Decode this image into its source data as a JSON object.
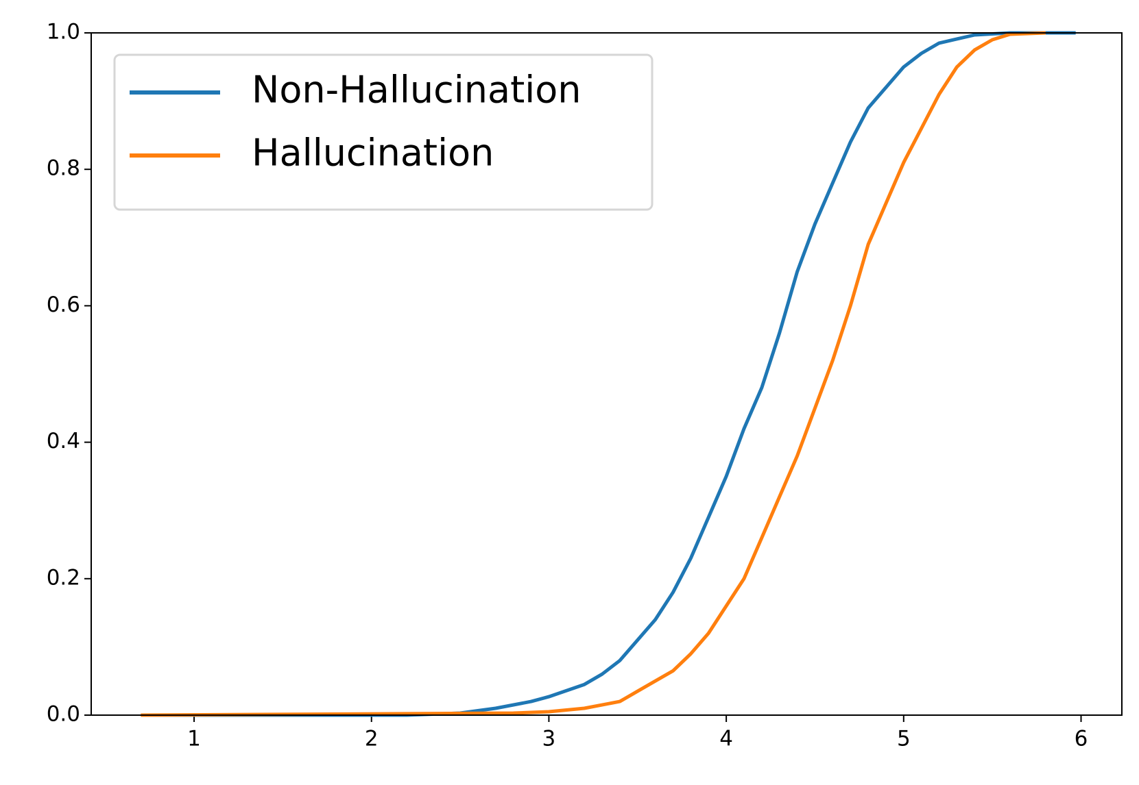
{
  "chart_data": {
    "type": "line",
    "xlim": [
      0.42,
      6.23
    ],
    "ylim": [
      0,
      1
    ],
    "xticks": [
      1,
      2,
      3,
      4,
      5,
      6
    ],
    "yticks": [
      {
        "value": 0,
        "label": "0.0"
      },
      0.2,
      0.4,
      0.6,
      0.8,
      {
        "value": 1,
        "label": "1.0"
      }
    ],
    "legend": "upper left",
    "grid": false,
    "series": [
      {
        "name": "Non-Hallucination",
        "color": "#1f77b4",
        "x": [
          0.7,
          2.2,
          2.5,
          2.7,
          2.9,
          3.0,
          3.2,
          3.3,
          3.4,
          3.5,
          3.6,
          3.7,
          3.8,
          3.9,
          4.0,
          4.1,
          4.2,
          4.3,
          4.4,
          4.5,
          4.6,
          4.7,
          4.8,
          4.9,
          5.0,
          5.1,
          5.2,
          5.4,
          5.6,
          5.97
        ],
        "values": [
          0,
          0,
          0.003,
          0.01,
          0.02,
          0.027,
          0.045,
          0.06,
          0.08,
          0.11,
          0.14,
          0.18,
          0.23,
          0.29,
          0.35,
          0.42,
          0.48,
          0.56,
          0.65,
          0.72,
          0.78,
          0.84,
          0.89,
          0.92,
          0.95,
          0.97,
          0.985,
          0.997,
          1.0,
          1.0
        ]
      },
      {
        "name": "Hallucination",
        "color": "#ff7f0e",
        "x": [
          0.7,
          2.8,
          3.0,
          3.2,
          3.4,
          3.5,
          3.6,
          3.7,
          3.8,
          3.9,
          4.0,
          4.1,
          4.2,
          4.3,
          4.4,
          4.5,
          4.6,
          4.7,
          4.8,
          4.9,
          5.0,
          5.1,
          5.2,
          5.3,
          5.4,
          5.5,
          5.6,
          5.8
        ],
        "values": [
          0,
          0.003,
          0.005,
          0.01,
          0.02,
          0.035,
          0.05,
          0.065,
          0.09,
          0.12,
          0.16,
          0.2,
          0.26,
          0.32,
          0.38,
          0.45,
          0.52,
          0.6,
          0.69,
          0.75,
          0.81,
          0.86,
          0.91,
          0.95,
          0.975,
          0.99,
          0.998,
          1.0
        ]
      }
    ]
  }
}
